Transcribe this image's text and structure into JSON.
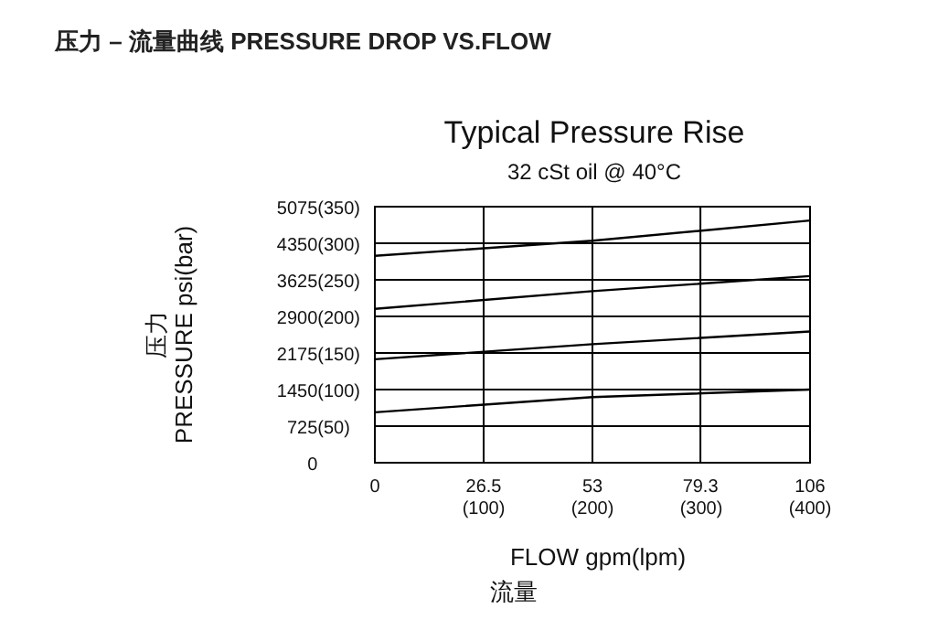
{
  "chart_data": {
    "type": "line",
    "title": "压力 – 流量曲线 PRESSURE DROP VS.FLOW",
    "subtitle": "Typical Pressure Rise",
    "annotations": [
      "32 cSt oil @ 40°C"
    ],
    "xlabel": "FLOW  gpm(lpm)\n流量",
    "ylabel": "压力\nPRESSURE  psi(bar)",
    "xlim": [
      0,
      106
    ],
    "ylim": [
      0,
      5075
    ],
    "xticks": [
      0,
      26.5,
      53,
      79.3,
      106
    ],
    "x2lim": [
      0,
      400
    ],
    "x2ticks": [
      {
        "value": 100,
        "label": "(100)"
      },
      {
        "value": 200,
        "label": "(200)"
      },
      {
        "value": 300,
        "label": "(300)"
      },
      {
        "value": 400,
        "label": "(400)"
      }
    ],
    "yticks": [
      0,
      725,
      1450,
      2175,
      2900,
      3625,
      4350,
      5075
    ],
    "y2lim": [
      0,
      350
    ],
    "y2ticks": [
      {
        "value": 50,
        "label": "(50)"
      },
      {
        "value": 100,
        "label": "(100)"
      },
      {
        "value": 150,
        "label": "(150)"
      },
      {
        "value": 200,
        "label": "(200)"
      },
      {
        "value": 250,
        "label": "(250)"
      },
      {
        "value": 300,
        "label": "(300)"
      },
      {
        "value": 350,
        "label": "(350)"
      }
    ],
    "grid": true,
    "marker": "none",
    "line_style": "solid",
    "x": [
      0,
      53,
      106
    ],
    "series": [
      {
        "color": "#000000",
        "values": [
          4100,
          4400,
          4800
        ]
      },
      {
        "color": "#000000",
        "values": [
          3050,
          3400,
          3700
        ]
      },
      {
        "color": "#000000",
        "values": [
          2050,
          2350,
          2600
        ]
      },
      {
        "color": "#000000",
        "values": [
          1000,
          1300,
          1450
        ]
      }
    ]
  }
}
